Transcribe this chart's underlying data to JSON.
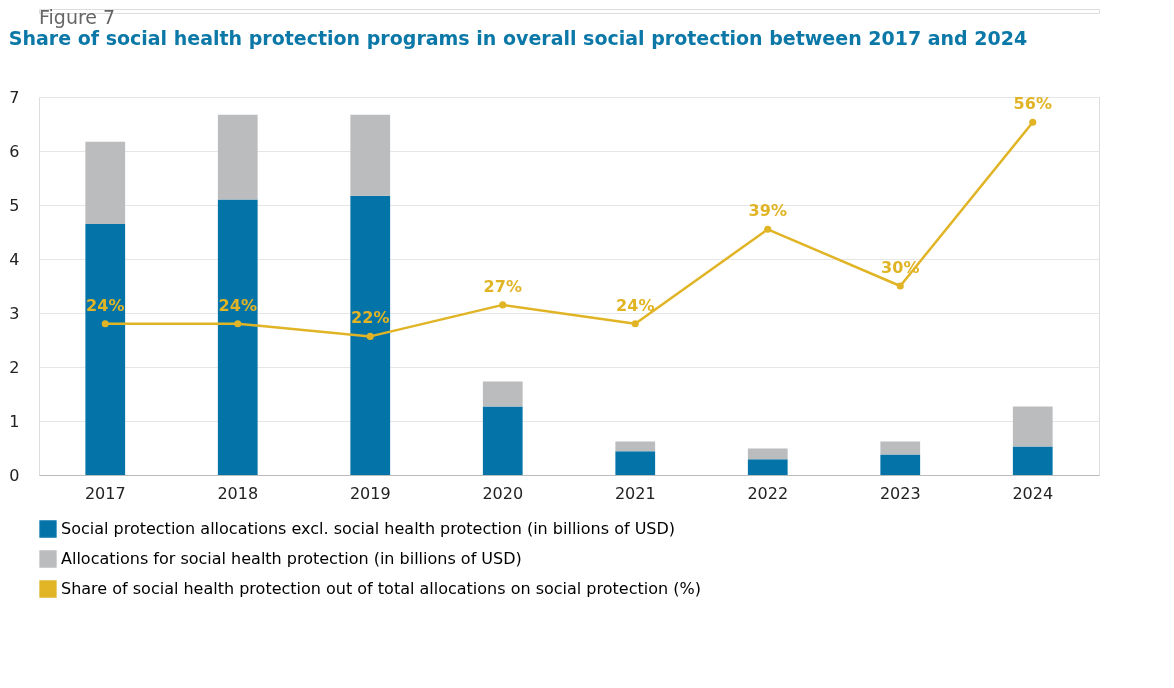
{
  "chart_data": {
    "type": "bar",
    "title": "Figure 7",
    "subtitle": "Share of social health protection programs in overall social protection between 2017 and 2024",
    "categories": [
      "2017",
      "2018",
      "2019",
      "2020",
      "2021",
      "2022",
      "2023",
      "2024"
    ],
    "stacked": true,
    "series": [
      {
        "name": "Social protection allocations excl. social health protection (in billions of USD)",
        "color": "#0474a8",
        "values": [
          4.65,
          5.1,
          5.17,
          1.27,
          0.44,
          0.29,
          0.38,
          0.53
        ]
      },
      {
        "name": "Allocations for social health protection (in billions of USD)",
        "color": "#bbbcbe",
        "values": [
          1.52,
          1.57,
          1.5,
          0.46,
          0.18,
          0.2,
          0.24,
          0.74
        ]
      },
      {
        "name": "Share of social health protection out of total allocations on social protection (%)",
        "type": "line",
        "axis": "y2",
        "color": "#e0b425",
        "marker": "circle",
        "values": [
          24,
          24,
          22,
          27,
          24,
          39,
          30,
          56
        ],
        "value_labels": [
          "24%",
          "24%",
          "22%",
          "27%",
          "24%",
          "39%",
          "30%",
          "56%"
        ]
      }
    ],
    "ylim": [
      0,
      7
    ],
    "yticks": [
      0,
      1,
      2,
      3,
      4,
      5,
      6,
      7
    ],
    "y2lim": [
      0,
      60
    ],
    "grid": "y",
    "legend": "bottom"
  }
}
